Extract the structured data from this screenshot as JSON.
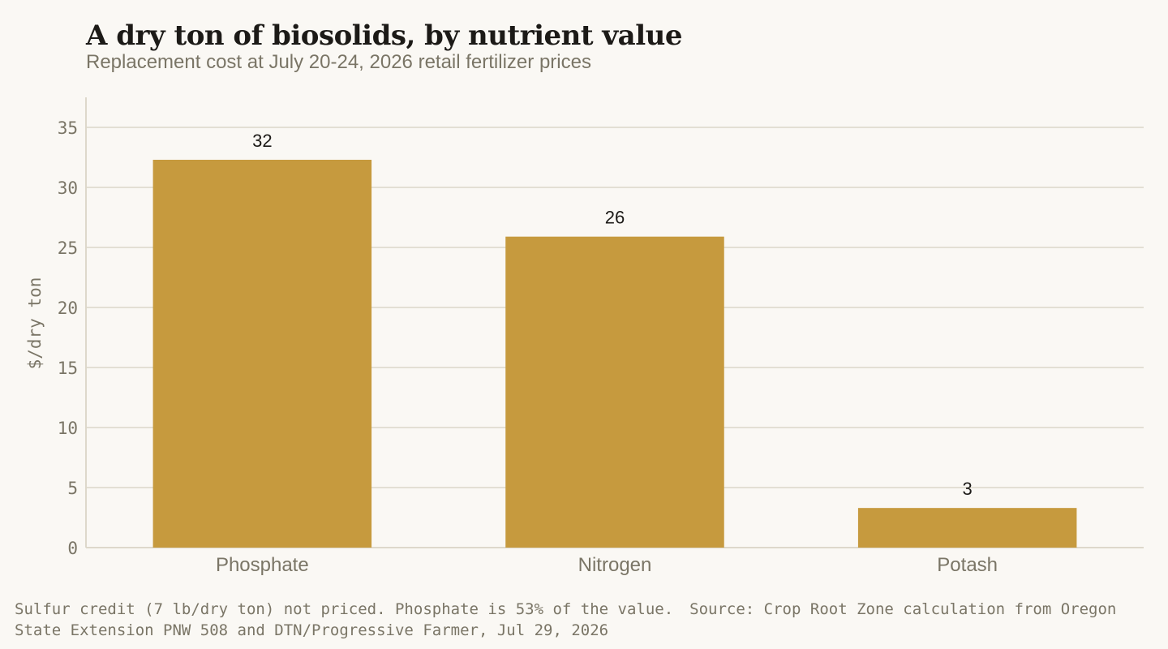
{
  "header": {
    "title": "A dry ton of biosolids, by nutrient value",
    "subtitle": "Replacement cost at July 20-24, 2026 retail fertilizer prices"
  },
  "footer": {
    "note": "Sulfur credit (7 lb/dry ton) not priced. Phosphate is 53% of the value.",
    "source": "Source: Crop Root Zone calculation from Oregon State Extension PNW 508 and DTN/Progressive Farmer, Jul 29, 2026"
  },
  "chart_data": {
    "type": "bar",
    "title": "A dry ton of biosolids, by nutrient value",
    "subtitle": "Replacement cost at July 20-24, 2026 retail fertilizer prices",
    "categories": [
      "Phosphate",
      "Nitrogen",
      "Potash"
    ],
    "values": [
      32.3,
      25.9,
      3.3
    ],
    "data_labels": [
      "32",
      "26",
      "3"
    ],
    "xlabel": "",
    "ylabel": "$/dry ton",
    "ylim": [
      0,
      37.5
    ],
    "yticks": [
      0,
      5,
      10,
      15,
      20,
      25,
      30,
      35
    ],
    "grid": true,
    "legend": "none",
    "colors": {
      "bar": "#c69a3e",
      "grid": "#e3dfd4",
      "axis": "#ddd8cb",
      "tick_text": "#7a7566",
      "label_text": "#1c1a17"
    }
  }
}
